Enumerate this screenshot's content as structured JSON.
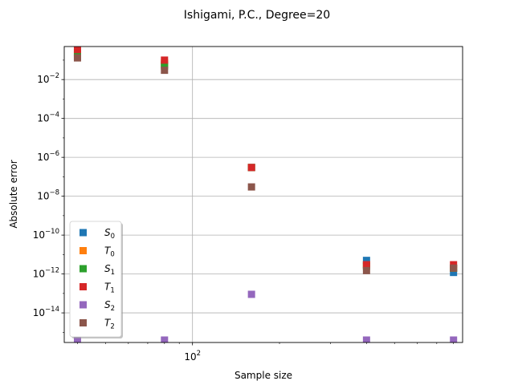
{
  "chart_data": {
    "type": "scatter",
    "title": "Ishigami, P.C., Degree=20",
    "xlabel": "Sample size",
    "ylabel": "Absolute error",
    "xscale": "log",
    "yscale": "log",
    "xlim": [
      36,
      860
    ],
    "ylim": [
      3e-16,
      0.5
    ],
    "grid": true,
    "legend_position": "lower-left",
    "x_ticks": [
      {
        "value": 100,
        "base": "10",
        "exp": "2"
      }
    ],
    "y_ticks": [
      {
        "value": 0.01,
        "base": "10",
        "exp": "−2"
      },
      {
        "value": 0.0001,
        "base": "10",
        "exp": "−4"
      },
      {
        "value": 1e-06,
        "base": "10",
        "exp": "−6"
      },
      {
        "value": 1e-08,
        "base": "10",
        "exp": "−8"
      },
      {
        "value": 1e-10,
        "base": "10",
        "exp": "−10"
      },
      {
        "value": 1e-12,
        "base": "10",
        "exp": "−12"
      },
      {
        "value": 1e-14,
        "base": "10",
        "exp": "−14"
      }
    ],
    "x": [
      40,
      80,
      160,
      400,
      800
    ],
    "series": [
      {
        "name": "S",
        "sub": "0",
        "color": "#1f77b4",
        "values": [
          0.15,
          0.06,
          3e-07,
          5e-12,
          1.2e-12
        ]
      },
      {
        "name": "T",
        "sub": "0",
        "color": "#ff7f0e",
        "values": [
          0.2,
          0.07,
          3e-07,
          3e-12,
          2e-12
        ]
      },
      {
        "name": "S",
        "sub": "1",
        "color": "#2ca02c",
        "values": [
          0.25,
          0.05,
          3e-07,
          2.5e-12,
          2e-12
        ]
      },
      {
        "name": "T",
        "sub": "1",
        "color": "#d62728",
        "values": [
          0.35,
          0.1,
          3e-07,
          3e-12,
          3e-12
        ]
      },
      {
        "name": "S",
        "sub": "2",
        "color": "#9467bd",
        "values": [
          4e-16,
          4e-16,
          9e-14,
          4e-16,
          4e-16
        ]
      },
      {
        "name": "T",
        "sub": "2",
        "color": "#8c564b",
        "values": [
          0.13,
          0.03,
          3e-08,
          1.5e-12,
          2e-12
        ]
      }
    ]
  }
}
